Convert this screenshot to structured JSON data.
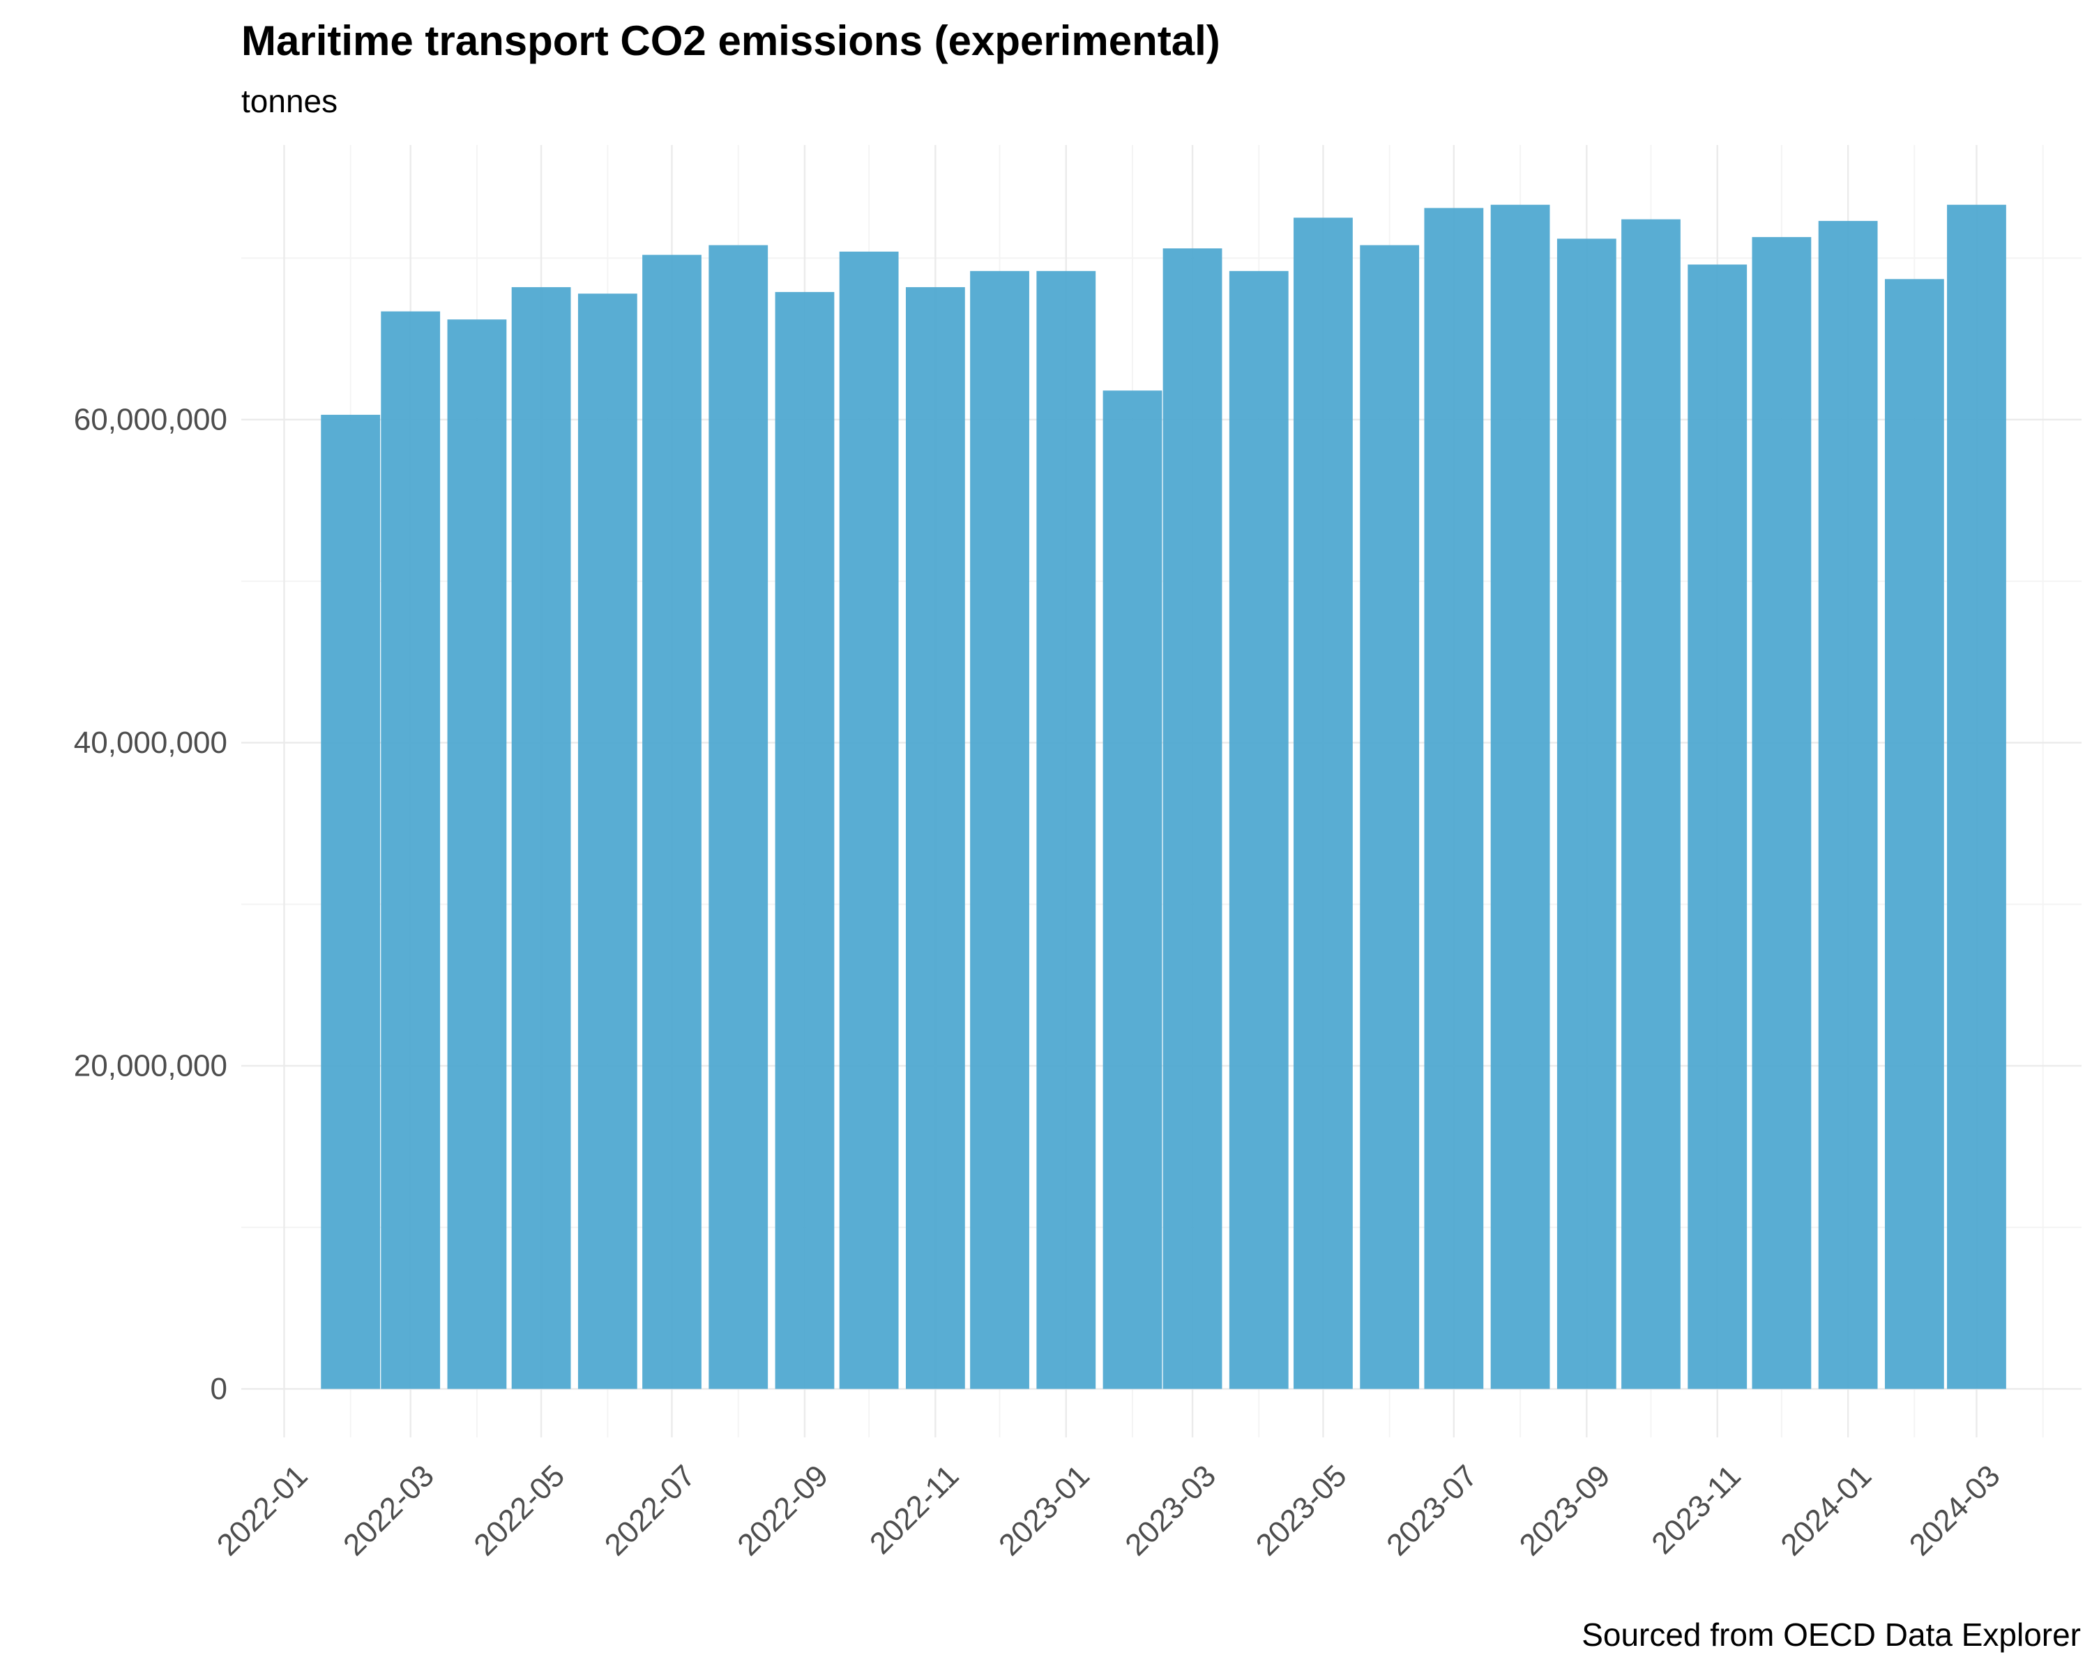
{
  "chart_data": {
    "type": "bar",
    "title": "Maritime transport CO2 emissions (experimental)",
    "subtitle": "tonnes",
    "caption": "Sourced from OECD Data Explorer",
    "xlabel": "",
    "ylabel": "",
    "categories": [
      "2022-02",
      "2022-03",
      "2022-04",
      "2022-05",
      "2022-06",
      "2022-07",
      "2022-08",
      "2022-09",
      "2022-10",
      "2022-11",
      "2022-12",
      "2023-01",
      "2023-02",
      "2023-03",
      "2023-04",
      "2023-05",
      "2023-06",
      "2023-07",
      "2023-08",
      "2023-09",
      "2023-10",
      "2023-11",
      "2023-12",
      "2024-01",
      "2024-02",
      "2024-03"
    ],
    "dates": [
      "2022-02-01",
      "2022-03-01",
      "2022-04-01",
      "2022-05-01",
      "2022-06-01",
      "2022-07-01",
      "2022-08-01",
      "2022-09-01",
      "2022-10-01",
      "2022-11-01",
      "2022-12-01",
      "2023-01-01",
      "2023-02-01",
      "2023-03-01",
      "2023-04-01",
      "2023-05-01",
      "2023-06-01",
      "2023-07-01",
      "2023-08-01",
      "2023-09-01",
      "2023-10-01",
      "2023-11-01",
      "2023-12-01",
      "2024-01-01",
      "2024-02-01",
      "2024-03-01"
    ],
    "values": [
      60300000,
      66700000,
      66200000,
      68200000,
      67800000,
      70200000,
      70800000,
      67900000,
      70400000,
      68200000,
      69200000,
      69200000,
      61800000,
      70600000,
      69200000,
      72500000,
      70800000,
      73100000,
      73300000,
      71200000,
      72400000,
      69600000,
      71300000,
      72300000,
      68700000,
      73300000
    ],
    "x_ticks": [
      "2022-01",
      "2022-03",
      "2022-05",
      "2022-07",
      "2022-09",
      "2022-11",
      "2023-01",
      "2023-03",
      "2023-05",
      "2023-07",
      "2023-09",
      "2023-11",
      "2024-01",
      "2024-03"
    ],
    "x_tick_dates": [
      "2022-01-01",
      "2022-03-01",
      "2022-05-01",
      "2022-07-01",
      "2022-09-01",
      "2022-11-01",
      "2023-01-01",
      "2023-03-01",
      "2023-05-01",
      "2023-07-01",
      "2023-09-01",
      "2023-11-01",
      "2024-01-01",
      "2024-03-01"
    ],
    "x_range": [
      "2021-12-12",
      "2024-04-19"
    ],
    "y_ticks": [
      0,
      20000000,
      40000000,
      60000000
    ],
    "y_tick_labels": [
      "0",
      "20,000,000",
      "40,000,000",
      "60,000,000"
    ],
    "ylim": [
      -3000000,
      77000000
    ],
    "grid": true,
    "legend": "none",
    "bar_color": "#4BA6CF",
    "grid_color": "#EBEBEB"
  }
}
